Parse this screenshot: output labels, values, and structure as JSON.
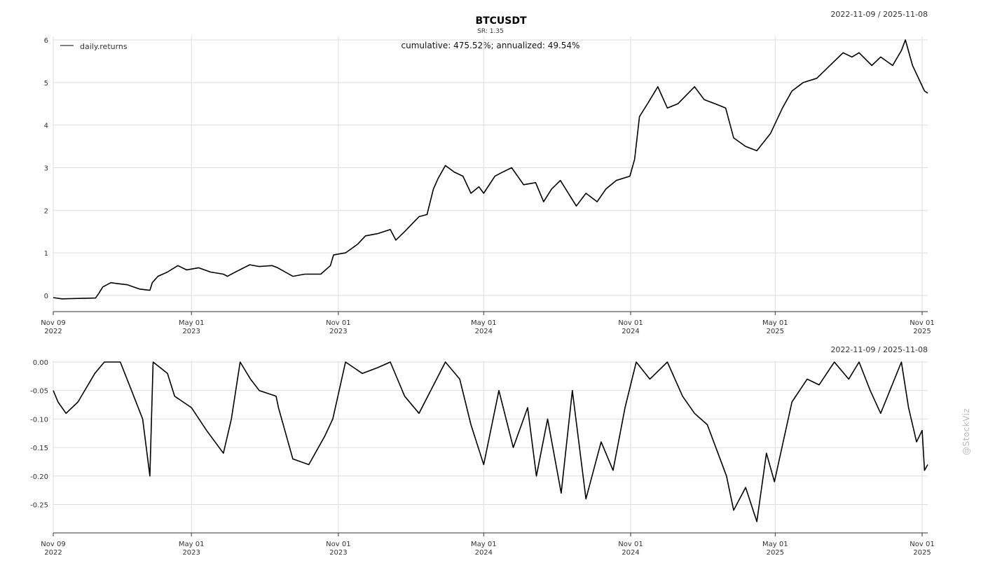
{
  "date_range": "2022-11-09 / 2025-11-08",
  "watermark": "@StockViz",
  "chart_data": [
    {
      "type": "line",
      "title": "BTCUSDT",
      "subtitle": "SR: 1.35",
      "annotation": "cumulative: 475.52%; annualized: 49.54%",
      "date_range": "2022-11-09 / 2025-11-08",
      "legend": {
        "position": "top-left",
        "entries": [
          "daily.returns"
        ]
      },
      "grid": true,
      "ylim": [
        -0.1,
        6.05
      ],
      "yticks": [
        "0",
        "1",
        "2",
        "3",
        "4",
        "5",
        "6"
      ],
      "xticks": [
        {
          "date": "2022-11-09",
          "label1": "Nov 09",
          "label2": "2022"
        },
        {
          "date": "2023-05-01",
          "label1": "May 01",
          "label2": "2023"
        },
        {
          "date": "2023-11-01",
          "label1": "Nov 01",
          "label2": "2023"
        },
        {
          "date": "2024-05-01",
          "label1": "May 01",
          "label2": "2024"
        },
        {
          "date": "2024-11-01",
          "label1": "Nov 01",
          "label2": "2024"
        },
        {
          "date": "2025-05-01",
          "label1": "May 01",
          "label2": "2025"
        },
        {
          "date": "2025-11-01",
          "label1": "Nov 01",
          "label2": "2025"
        }
      ],
      "series": [
        {
          "name": "daily.returns",
          "x": [
            "2022-11-09",
            "2022-11-20",
            "2022-12-10",
            "2023-01-01",
            "2023-01-05",
            "2023-01-10",
            "2023-01-20",
            "2023-01-28",
            "2023-02-10",
            "2023-02-25",
            "2023-03-10",
            "2023-03-13",
            "2023-03-20",
            "2023-04-01",
            "2023-04-14",
            "2023-04-25",
            "2023-05-10",
            "2023-05-25",
            "2023-06-10",
            "2023-06-15",
            "2023-06-25",
            "2023-07-13",
            "2023-07-25",
            "2023-08-10",
            "2023-08-17",
            "2023-09-05",
            "2023-09-20",
            "2023-10-10",
            "2023-10-22",
            "2023-10-26",
            "2023-11-10",
            "2023-11-25",
            "2023-12-05",
            "2023-12-20",
            "2024-01-05",
            "2024-01-12",
            "2024-01-23",
            "2024-02-10",
            "2024-02-20",
            "2024-02-28",
            "2024-03-05",
            "2024-03-14",
            "2024-03-25",
            "2024-04-05",
            "2024-04-15",
            "2024-04-25",
            "2024-05-01",
            "2024-05-15",
            "2024-05-25",
            "2024-06-05",
            "2024-06-20",
            "2024-07-05",
            "2024-07-15",
            "2024-07-25",
            "2024-08-05",
            "2024-08-25",
            "2024-09-06",
            "2024-09-20",
            "2024-10-01",
            "2024-10-14",
            "2024-10-31",
            "2024-11-06",
            "2024-11-12",
            "2024-11-22",
            "2024-12-05",
            "2024-12-17",
            "2024-12-30",
            "2025-01-20",
            "2025-02-01",
            "2025-02-15",
            "2025-02-28",
            "2025-03-10",
            "2025-03-25",
            "2025-04-08",
            "2025-04-25",
            "2025-05-10",
            "2025-05-22",
            "2025-06-05",
            "2025-06-22",
            "2025-07-14",
            "2025-07-25",
            "2025-08-05",
            "2025-08-14",
            "2025-08-30",
            "2025-09-10",
            "2025-09-25",
            "2025-10-06",
            "2025-10-11",
            "2025-10-20",
            "2025-11-04",
            "2025-11-08"
          ],
          "y": [
            -0.05,
            -0.08,
            -0.07,
            -0.06,
            0.05,
            0.2,
            0.3,
            0.28,
            0.25,
            0.15,
            0.12,
            0.3,
            0.45,
            0.55,
            0.7,
            0.6,
            0.65,
            0.55,
            0.5,
            0.45,
            0.55,
            0.72,
            0.68,
            0.7,
            0.65,
            0.45,
            0.5,
            0.5,
            0.7,
            0.95,
            1.0,
            1.2,
            1.4,
            1.45,
            1.55,
            1.3,
            1.5,
            1.85,
            1.9,
            2.5,
            2.75,
            3.05,
            2.9,
            2.8,
            2.4,
            2.55,
            2.4,
            2.8,
            2.9,
            3.0,
            2.6,
            2.65,
            2.2,
            2.5,
            2.7,
            2.1,
            2.4,
            2.2,
            2.5,
            2.7,
            2.8,
            3.2,
            4.2,
            4.5,
            4.9,
            4.4,
            4.5,
            4.9,
            4.6,
            4.5,
            4.4,
            3.7,
            3.5,
            3.4,
            3.8,
            4.4,
            4.8,
            5.0,
            5.1,
            5.5,
            5.7,
            5.6,
            5.7,
            5.4,
            5.6,
            5.4,
            5.75,
            6.0,
            5.4,
            4.8,
            4.75
          ]
        }
      ]
    },
    {
      "type": "line",
      "title": "",
      "date_range": "2022-11-09 / 2025-11-08",
      "grid": true,
      "ylim": [
        -0.285,
        0.0
      ],
      "yticks": [
        "0.00",
        "-0.05",
        "-0.10",
        "-0.15",
        "-0.20",
        "-0.25"
      ],
      "xticks": [
        {
          "date": "2022-11-09",
          "label1": "Nov 09",
          "label2": "2022"
        },
        {
          "date": "2023-05-01",
          "label1": "May 01",
          "label2": "2023"
        },
        {
          "date": "2023-11-01",
          "label1": "Nov 01",
          "label2": "2023"
        },
        {
          "date": "2024-05-01",
          "label1": "May 01",
          "label2": "2024"
        },
        {
          "date": "2024-11-01",
          "label1": "Nov 01",
          "label2": "2024"
        },
        {
          "date": "2025-05-01",
          "label1": "May 01",
          "label2": "2025"
        },
        {
          "date": "2025-11-01",
          "label1": "Nov 01",
          "label2": "2025"
        }
      ],
      "series": [
        {
          "x": [
            "2022-11-09",
            "2022-11-15",
            "2022-11-25",
            "2022-12-10",
            "2022-12-31",
            "2023-01-12",
            "2023-02-01",
            "2023-02-15",
            "2023-03-01",
            "2023-03-10",
            "2023-03-14",
            "2023-04-01",
            "2023-04-10",
            "2023-05-01",
            "2023-05-20",
            "2023-06-10",
            "2023-06-20",
            "2023-07-01",
            "2023-07-14",
            "2023-07-25",
            "2023-08-15",
            "2023-08-18",
            "2023-09-05",
            "2023-09-25",
            "2023-10-15",
            "2023-10-25",
            "2023-11-10",
            "2023-12-01",
            "2023-12-20",
            "2024-01-05",
            "2024-01-23",
            "2024-02-10",
            "2024-03-14",
            "2024-04-01",
            "2024-04-15",
            "2024-05-01",
            "2024-05-20",
            "2024-06-07",
            "2024-06-25",
            "2024-07-06",
            "2024-07-20",
            "2024-08-06",
            "2024-08-20",
            "2024-09-06",
            "2024-09-25",
            "2024-10-10",
            "2024-10-25",
            "2024-11-08",
            "2024-11-25",
            "2024-12-17",
            "2025-01-05",
            "2025-01-20",
            "2025-02-05",
            "2025-03-01",
            "2025-03-10",
            "2025-03-25",
            "2025-04-08",
            "2025-04-20",
            "2025-04-30",
            "2025-05-22",
            "2025-06-10",
            "2025-06-25",
            "2025-07-14",
            "2025-08-01",
            "2025-08-14",
            "2025-08-28",
            "2025-09-10",
            "2025-10-06",
            "2025-10-15",
            "2025-10-25",
            "2025-11-01",
            "2025-11-04",
            "2025-11-08"
          ],
          "y": [
            -0.05,
            -0.07,
            -0.09,
            -0.07,
            -0.02,
            0.0,
            0.0,
            -0.05,
            -0.1,
            -0.2,
            0.0,
            -0.02,
            -0.06,
            -0.08,
            -0.12,
            -0.16,
            -0.1,
            0.0,
            -0.03,
            -0.05,
            -0.06,
            -0.08,
            -0.17,
            -0.18,
            -0.13,
            -0.1,
            0.0,
            -0.02,
            -0.01,
            0.0,
            -0.06,
            -0.09,
            0.0,
            -0.03,
            -0.11,
            -0.18,
            -0.05,
            -0.15,
            -0.08,
            -0.2,
            -0.1,
            -0.23,
            -0.05,
            -0.24,
            -0.14,
            -0.19,
            -0.08,
            0.0,
            -0.03,
            0.0,
            -0.06,
            -0.09,
            -0.11,
            -0.2,
            -0.26,
            -0.22,
            -0.28,
            -0.16,
            -0.21,
            -0.07,
            -0.03,
            -0.04,
            0.0,
            -0.03,
            0.0,
            -0.05,
            -0.09,
            0.0,
            -0.08,
            -0.14,
            -0.12,
            -0.19,
            -0.18
          ]
        }
      ]
    }
  ]
}
